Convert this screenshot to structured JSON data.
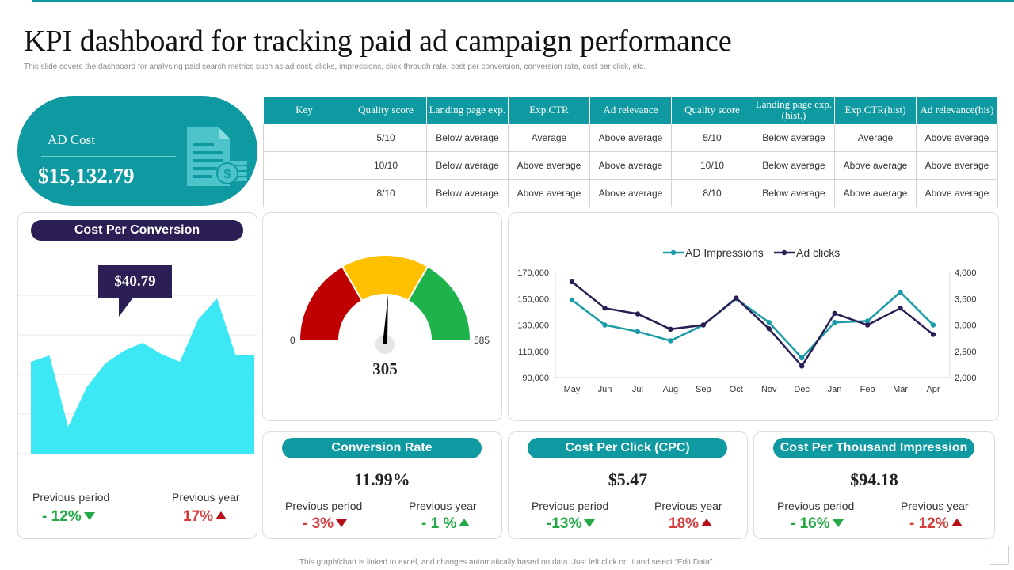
{
  "title": "KPI dashboard for tracking paid ad campaign performance",
  "subtitle": "This slide covers the dashboard for analysing paid search metrics such as ad cost, clicks, impressions, click-through rate, cost per conversion, conversion rate, cost per click, etc.",
  "footer": "This graph/chart is linked to excel, and changes automatically based on data. Just left click on it and select “Edit Data”.",
  "colors": {
    "teal": "#0e9aa0",
    "navy": "#2b1f55",
    "cyan_fill": "#3de8f5",
    "gauge_red": "#c00000",
    "gauge_yellow": "#ffc000",
    "gauge_green": "#1db34a",
    "good": "#22a845",
    "bad": "#d63c3c"
  },
  "ad_cost": {
    "label": "AD Cost",
    "value": "$15,132.79",
    "icon": "invoice-dollar-icon"
  },
  "table": {
    "headers": [
      "Key",
      "Quality score",
      "Landing page exp.",
      "Exp.CTR",
      "Ad relevance",
      "Quality score",
      "Landing page exp.(hist.)",
      "Exp.CTR(hist)",
      "Ad relevance(his)"
    ],
    "rows": [
      [
        "",
        "5/10",
        "Below average",
        "Average",
        "Above average",
        "5/10",
        "Below average",
        "Average",
        "Above average"
      ],
      [
        "",
        "10/10",
        "Below average",
        "Above average",
        "Above average",
        "10/10",
        "Below average",
        "Above average",
        "Above average"
      ],
      [
        "",
        "8/10",
        "Below average",
        "Above average",
        "Above average",
        "8/10",
        "Below average",
        "Above average",
        "Above average"
      ]
    ]
  },
  "cost_per_conversion": {
    "title": "Cost Per Conversion",
    "callout": "$40.79",
    "prev_period_label": "Previous period",
    "prev_period_value": "- 12%",
    "prev_year_label": "Previous year",
    "prev_year_value": "17%"
  },
  "gauge": {
    "min_label": "0",
    "max_label": "585",
    "value_label": "305"
  },
  "conversion_rate": {
    "title": "Conversion Rate",
    "value": "11.99%",
    "prev_period_label": "Previous period",
    "prev_period_value": "- 3%",
    "prev_year_label": "Previous year",
    "prev_year_value": "- 1 %"
  },
  "cpc": {
    "title": "Cost Per Click (CPC)",
    "value": "$5.47",
    "prev_period_label": "Previous period",
    "prev_period_value": "-13%",
    "prev_year_label": "Previous year",
    "prev_year_value": "18%"
  },
  "cpm": {
    "title": "Cost Per Thousand Impression",
    "value": "$94.18",
    "prev_period_label": "Previous period",
    "prev_period_value": "- 16%",
    "prev_year_label": "Previous year",
    "prev_year_value": "- 12%"
  },
  "chart_data": [
    {
      "type": "area",
      "title": "Cost Per Conversion",
      "x": [
        1,
        2,
        3,
        4,
        5,
        6,
        7,
        8,
        9,
        10,
        11,
        12,
        13
      ],
      "values": [
        58,
        62,
        17,
        42,
        57,
        65,
        70,
        63,
        58,
        85,
        98,
        62,
        62
      ],
      "ylim": [
        0,
        120
      ]
    },
    {
      "type": "gauge",
      "min": 0,
      "max": 585,
      "value": 305,
      "bands": [
        {
          "from": 0,
          "to": 195,
          "color": "#c00000"
        },
        {
          "from": 195,
          "to": 390,
          "color": "#ffc000"
        },
        {
          "from": 390,
          "to": 585,
          "color": "#1db34a"
        }
      ]
    },
    {
      "type": "line",
      "categories": [
        "May",
        "Jun",
        "Jul",
        "Aug",
        "Sep",
        "Oct",
        "Nov",
        "Dec",
        "Jan",
        "Feb",
        "Mar",
        "Apr"
      ],
      "series": [
        {
          "name": "AD Impressions",
          "axis": "left",
          "color": "#1a9ba5",
          "values": [
            149000,
            130000,
            125000,
            118000,
            130000,
            150000,
            132000,
            105000,
            132000,
            133000,
            155000,
            130000
          ]
        },
        {
          "name": "Ad clicks",
          "axis": "right",
          "color": "#2b1f55",
          "values": [
            3820,
            3320,
            3210,
            2920,
            3000,
            3510,
            2930,
            2220,
            3220,
            3000,
            3320,
            2820
          ]
        }
      ],
      "y_left": {
        "min": 90000,
        "max": 170000,
        "ticks": [
          "90,000",
          "110,000",
          "130,000",
          "150,000",
          "170,000"
        ]
      },
      "y_right": {
        "min": 2000,
        "max": 4000,
        "ticks": [
          "2,000",
          "2,500",
          "3,000",
          "3,500",
          "4,000"
        ]
      },
      "legend": "top-center"
    }
  ]
}
